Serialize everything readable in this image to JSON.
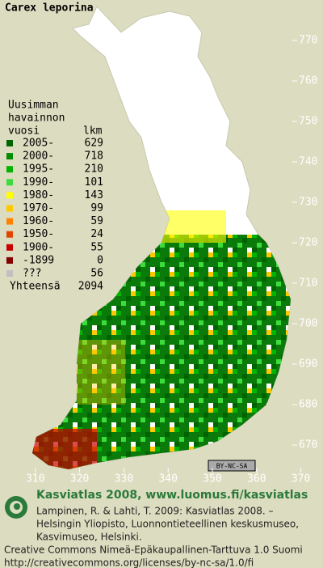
{
  "map": {
    "title": "Carex leporina",
    "ylim": [
      664,
      780
    ],
    "yticks": [
      670,
      680,
      690,
      700,
      710,
      720,
      730,
      740,
      750,
      760,
      770
    ],
    "xlim": [
      302,
      375
    ],
    "xticks": [
      310,
      320,
      330,
      340,
      350,
      360,
      370
    ],
    "legend": {
      "header": [
        "Uusimman",
        "havainnon",
        "vuosi"
      ],
      "count_header": "lkm",
      "rows": [
        {
          "label": "2005-",
          "count": 629,
          "color": "#006400"
        },
        {
          "label": "2000-",
          "count": 718,
          "color": "#008c00"
        },
        {
          "label": "1995-",
          "count": 210,
          "color": "#00b400"
        },
        {
          "label": "1990-",
          "count": 101,
          "color": "#3cdc3c"
        },
        {
          "label": "1980-",
          "count": 143,
          "color": "#ffff00"
        },
        {
          "label": "1970-",
          "count": 99,
          "color": "#ffc800"
        },
        {
          "label": "1960-",
          "count": 59,
          "color": "#ff8200"
        },
        {
          "label": "1950-",
          "count": 24,
          "color": "#e04600"
        },
        {
          "label": "1900-",
          "count": 55,
          "color": "#c80000"
        },
        {
          "label": "-1899",
          "count": 0,
          "color": "#820000"
        },
        {
          "label": "???",
          "count": 56,
          "color": "#c0c0c0"
        }
      ],
      "total_label": "Yhteensä",
      "total": 2094
    },
    "license_badge": "BY-NC-SA"
  },
  "footer": {
    "heading": "Kasviatlas 2008, www.luomus.fi/kasviatlas",
    "citation": [
      "Lampinen, R. & Lahti, T. 2009: Kasviatlas 2008. –",
      "Helsingin Yliopisto, Luonnontieteellinen keskusmuseo,",
      "Kasvimuseo, Helsinki."
    ],
    "license": [
      "Creative Commons Nimeä-Epäkaupallinen-Tarttuva 1.0 Suomi",
      "http://creativecommons.org/licenses/by-nc-sa/1.0/fi"
    ]
  }
}
